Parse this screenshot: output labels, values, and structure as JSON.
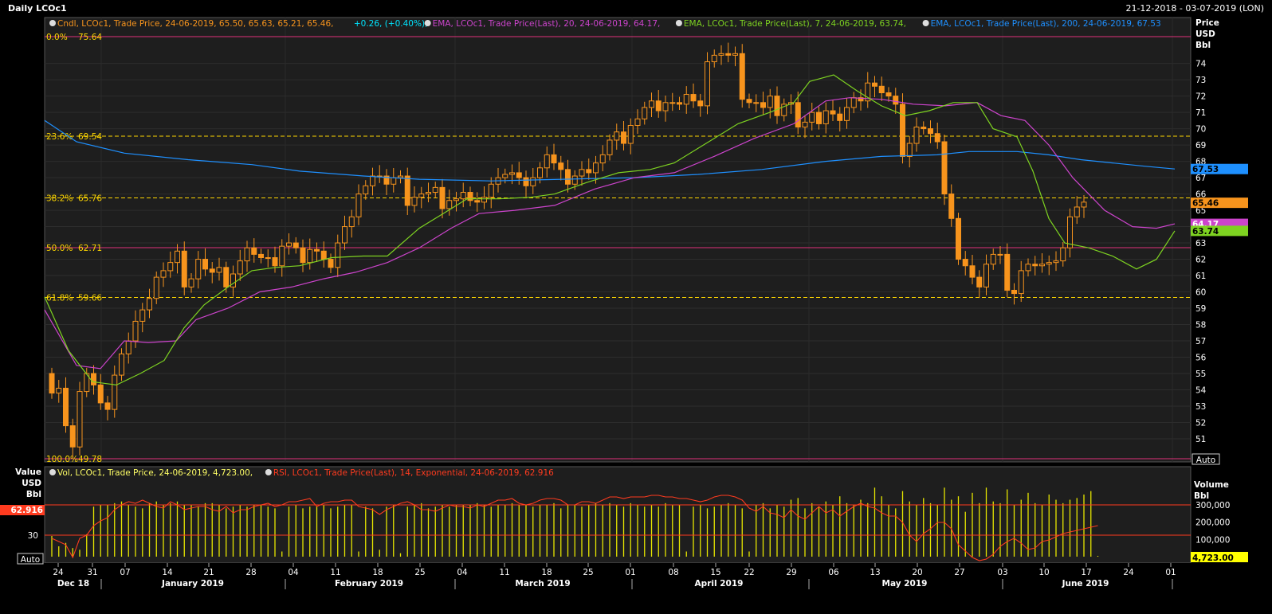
{
  "header": {
    "title": "Daily LCOc1",
    "date_range": "21-12-2018 - 03-07-2019 (LON)"
  },
  "legend_main": [
    {
      "text": "Cndl, LCOc1, Trade Price,  24-06-2019, 65.50, 65.63, 65.21, 65.46, ",
      "color": "#f7941d"
    },
    {
      "text": "+0.26, (+0.40%),",
      "color": "#00e5ff"
    },
    {
      "text": "EMA, LCOc1, Trade Price(Last),  20,  24-06-2019, 64.17,",
      "color": "#cc44cc"
    },
    {
      "text": "EMA, LCOc1, Trade Price(Last),  7,  24-06-2019, 63.74,",
      "color": "#7ed321"
    },
    {
      "text": "EMA, LCOc1, Trade Price(Last),  200,  24-06-2019, 67.53",
      "color": "#1e90ff"
    }
  ],
  "legend_lower": [
    {
      "text": "Vol, LCOc1, Trade Price,  24-06-2019, 4,723.00,",
      "color": "#ffff66"
    },
    {
      "text": "RSI, LCOc1, Trade Price(Last),  14, Exponential,  24-06-2019, 62.916",
      "color": "#ff3b1f"
    }
  ],
  "main_axis": {
    "unit_lines": [
      "Price",
      "USD",
      "Bbl"
    ],
    "ticks": [
      51,
      52,
      53,
      54,
      55,
      56,
      57,
      58,
      59,
      60,
      61,
      62,
      63,
      64,
      65,
      66,
      67,
      68,
      69,
      70,
      71,
      72,
      73,
      74
    ],
    "auto_label": "Auto"
  },
  "fib_levels": [
    {
      "pct": "0.0%",
      "price": "75.64",
      "value": 75.64,
      "style": "solid"
    },
    {
      "pct": "23.6%",
      "price": "69.54",
      "value": 69.54,
      "style": "dashed"
    },
    {
      "pct": "38.2%",
      "price": "65.76",
      "value": 65.76,
      "style": "dashed"
    },
    {
      "pct": "50.0%",
      "price": "62.71",
      "value": 62.71,
      "style": "solid"
    },
    {
      "pct": "61.8%",
      "price": "59.66",
      "value": 59.66,
      "style": "dashed"
    },
    {
      "pct": "100.0%",
      "price": "49.78",
      "value": 49.78,
      "style": "solid"
    }
  ],
  "price_tags": [
    {
      "text": "67.53",
      "value": 67.53,
      "color": "#1e90ff",
      "text_color": "#000"
    },
    {
      "text": "65.46",
      "value": 65.46,
      "color": "#f7941d",
      "text_color": "#000"
    },
    {
      "text": "64.17",
      "value": 64.17,
      "color": "#cc44cc",
      "text_color": "#fff"
    },
    {
      "text": "63.74",
      "value": 63.74,
      "color": "#7ed321",
      "text_color": "#000"
    }
  ],
  "lower_left_axis": {
    "unit_lines": [
      "Value",
      "USD",
      "Bbl"
    ],
    "rsi_tag": "62.916",
    "tick_30": "30",
    "auto_label": "Auto"
  },
  "lower_right_axis": {
    "unit_lines": [
      "Volume",
      "Bbl"
    ],
    "ticks": [
      {
        "text": "300,000",
        "value": 300000
      },
      {
        "text": "200,000",
        "value": 200000
      },
      {
        "text": "100,000",
        "value": 100000
      }
    ],
    "vol_tag": "4,723.00"
  },
  "x_axis": {
    "day_labels": [
      "24",
      "31",
      "07",
      "14",
      "21",
      "28",
      "04",
      "11",
      "18",
      "25",
      "04",
      "11",
      "18",
      "25",
      "01",
      "08",
      "15",
      "22",
      "29",
      "06",
      "13",
      "20",
      "27",
      "03",
      "10",
      "17",
      "24",
      "01"
    ],
    "month_labels": [
      "Dec 18",
      "January 2019",
      "February 2019",
      "March 2019",
      "April 2019",
      "May 2019",
      "June 2019"
    ]
  },
  "colors": {
    "candle": "#f7941d",
    "ema20": "#cc44cc",
    "ema7": "#7ed321",
    "ema200": "#1e90ff",
    "fib_solid": "#e0307a",
    "fib_dashed": "#ffd700",
    "volume": "#e6e600",
    "rsi": "#ff3b1f"
  },
  "chart_data": {
    "type": "candlestick",
    "title": "Daily LCOc1",
    "ylabel": "Price USD Bbl",
    "ylim": [
      49.78,
      75.64
    ],
    "x_range": [
      "21-12-2018",
      "03-07-2019"
    ],
    "last": {
      "date": "24-06-2019",
      "open": 65.5,
      "high": 65.63,
      "low": 65.21,
      "close": 65.46,
      "change": 0.26,
      "change_pct": 0.4
    },
    "closes": [
      53.8,
      54.1,
      51.8,
      50.5,
      53.9,
      55.0,
      54.3,
      53.2,
      52.8,
      54.9,
      56.2,
      57.0,
      58.2,
      58.9,
      59.6,
      60.9,
      61.3,
      61.8,
      62.5,
      60.3,
      60.8,
      62.0,
      61.4,
      61.2,
      61.5,
      60.3,
      61.1,
      61.9,
      62.7,
      62.3,
      62.1,
      62.1,
      61.6,
      62.8,
      63.0,
      62.7,
      61.8,
      62.6,
      62.5,
      62.0,
      61.5,
      63.0,
      64.0,
      64.6,
      66.0,
      66.5,
      67.1,
      67.1,
      66.6,
      67.0,
      67.1,
      65.3,
      65.8,
      66.0,
      66.1,
      66.4,
      65.1,
      65.6,
      65.7,
      66.1,
      65.6,
      65.5,
      65.8,
      66.6,
      67.0,
      67.2,
      67.3,
      67.0,
      66.5,
      67.0,
      67.6,
      68.4,
      67.9,
      67.5,
      66.6,
      67.1,
      67.5,
      67.3,
      67.9,
      68.4,
      69.3,
      69.8,
      69.1,
      70.2,
      70.6,
      71.3,
      71.7,
      71.1,
      71.6,
      71.6,
      71.5,
      72.1,
      71.7,
      71.4,
      74.1,
      74.5,
      74.6,
      74.5,
      74.6,
      71.8,
      71.6,
      71.6,
      71.3,
      72.0,
      70.8,
      71.5,
      71.6,
      70.1,
      70.4,
      71.0,
      70.3,
      71.1,
      70.9,
      70.5,
      71.3,
      71.9,
      71.7,
      72.8,
      72.6,
      72.2,
      72.0,
      71.5,
      68.3,
      69.1,
      70.1,
      70.0,
      69.7,
      69.2,
      66.0,
      64.5,
      62.0,
      61.6,
      60.9,
      60.3,
      61.7,
      62.3,
      62.3,
      60.1,
      59.9,
      61.3,
      61.7,
      61.6,
      61.7,
      61.8,
      61.9,
      62.7,
      64.6,
      65.2,
      65.5
    ],
    "ema200_points": [
      [
        0,
        70.5
      ],
      [
        40,
        69.2
      ],
      [
        100,
        68.5
      ],
      [
        180,
        68.1
      ],
      [
        260,
        67.8
      ],
      [
        320,
        67.4
      ],
      [
        400,
        67.1
      ],
      [
        470,
        66.9
      ],
      [
        560,
        66.8
      ],
      [
        650,
        66.9
      ],
      [
        740,
        67.0
      ],
      [
        820,
        67.2
      ],
      [
        900,
        67.5
      ],
      [
        980,
        68.0
      ],
      [
        1050,
        68.3
      ],
      [
        1120,
        68.4
      ],
      [
        1160,
        68.6
      ],
      [
        1220,
        68.6
      ],
      [
        1260,
        68.4
      ],
      [
        1300,
        68.1
      ],
      [
        1340,
        67.9
      ],
      [
        1380,
        67.7
      ],
      [
        1418,
        67.53
      ]
    ],
    "ema20_points": [
      [
        0,
        58.9
      ],
      [
        40,
        55.5
      ],
      [
        70,
        55.3
      ],
      [
        100,
        57.0
      ],
      [
        130,
        56.9
      ],
      [
        165,
        57.0
      ],
      [
        190,
        58.3
      ],
      [
        230,
        59.0
      ],
      [
        270,
        60.0
      ],
      [
        310,
        60.3
      ],
      [
        350,
        60.8
      ],
      [
        390,
        61.2
      ],
      [
        430,
        61.8
      ],
      [
        470,
        62.7
      ],
      [
        510,
        63.9
      ],
      [
        545,
        64.8
      ],
      [
        590,
        65.0
      ],
      [
        640,
        65.3
      ],
      [
        690,
        66.3
      ],
      [
        740,
        67.0
      ],
      [
        790,
        67.3
      ],
      [
        840,
        68.3
      ],
      [
        890,
        69.4
      ],
      [
        940,
        70.3
      ],
      [
        980,
        71.7
      ],
      [
        1010,
        71.9
      ],
      [
        1050,
        71.8
      ],
      [
        1090,
        71.5
      ],
      [
        1130,
        71.4
      ],
      [
        1170,
        71.6
      ],
      [
        1200,
        70.8
      ],
      [
        1230,
        70.5
      ],
      [
        1260,
        69.0
      ],
      [
        1290,
        67.0
      ],
      [
        1330,
        65.0
      ],
      [
        1365,
        64.0
      ],
      [
        1395,
        63.9
      ],
      [
        1418,
        64.17
      ]
    ],
    "ema7_points": [
      [
        0,
        59.7
      ],
      [
        30,
        56.4
      ],
      [
        60,
        54.5
      ],
      [
        90,
        54.3
      ],
      [
        120,
        55.0
      ],
      [
        150,
        55.8
      ],
      [
        175,
        57.8
      ],
      [
        200,
        59.2
      ],
      [
        230,
        60.3
      ],
      [
        260,
        61.3
      ],
      [
        290,
        61.5
      ],
      [
        320,
        61.6
      ],
      [
        360,
        62.1
      ],
      [
        400,
        62.2
      ],
      [
        430,
        62.2
      ],
      [
        470,
        63.9
      ],
      [
        500,
        64.8
      ],
      [
        530,
        65.7
      ],
      [
        570,
        65.7
      ],
      [
        610,
        65.8
      ],
      [
        640,
        66.0
      ],
      [
        680,
        66.7
      ],
      [
        720,
        67.3
      ],
      [
        760,
        67.5
      ],
      [
        790,
        67.9
      ],
      [
        830,
        69.1
      ],
      [
        870,
        70.3
      ],
      [
        910,
        71.0
      ],
      [
        940,
        71.6
      ],
      [
        960,
        72.9
      ],
      [
        990,
        73.3
      ],
      [
        1020,
        72.3
      ],
      [
        1050,
        71.4
      ],
      [
        1080,
        70.8
      ],
      [
        1110,
        71.1
      ],
      [
        1140,
        71.6
      ],
      [
        1170,
        71.6
      ],
      [
        1190,
        70.0
      ],
      [
        1220,
        69.5
      ],
      [
        1240,
        67.4
      ],
      [
        1260,
        64.5
      ],
      [
        1280,
        63.0
      ],
      [
        1310,
        62.7
      ],
      [
        1340,
        62.2
      ],
      [
        1370,
        61.4
      ],
      [
        1395,
        62.0
      ],
      [
        1418,
        63.74
      ]
    ],
    "volume": [
      120000,
      60000,
      80000,
      50000,
      40000,
      130000,
      290000,
      300000,
      300000,
      310000,
      320000,
      300000,
      290000,
      280000,
      310000,
      320000,
      300000,
      310000,
      320000,
      300000,
      300000,
      290000,
      310000,
      310000,
      300000,
      280000,
      290000,
      300000,
      290000,
      300000,
      300000,
      290000,
      280000,
      30000,
      290000,
      300000,
      280000,
      290000,
      290000,
      300000,
      280000,
      290000,
      300000,
      300000,
      30000,
      290000,
      280000,
      40000,
      290000,
      300000,
      20000,
      290000,
      300000,
      310000,
      280000,
      290000,
      300000,
      290000,
      300000,
      300000,
      300000,
      310000,
      300000,
      290000,
      300000,
      300000,
      310000,
      300000,
      300000,
      290000,
      300000,
      300000,
      310000,
      280000,
      300000,
      300000,
      290000,
      300000,
      310000,
      300000,
      310000,
      300000,
      290000,
      310000,
      300000,
      290000,
      300000,
      290000,
      310000,
      300000,
      300000,
      30000,
      290000,
      300000,
      280000,
      290000,
      300000,
      310000,
      300000,
      280000,
      30000,
      300000,
      310000,
      280000,
      300000,
      290000,
      330000,
      340000,
      280000,
      310000,
      290000,
      320000,
      300000,
      350000,
      310000,
      300000,
      330000,
      310000,
      400000,
      350000,
      300000,
      280000,
      380000,
      320000,
      300000,
      340000,
      310000,
      300000,
      400000,
      330000,
      350000,
      260000,
      370000,
      310000,
      400000,
      320000,
      310000,
      390000,
      300000,
      330000,
      370000,
      310000,
      300000,
      360000,
      330000,
      310000,
      330000,
      340000,
      360000,
      380000,
      4723
    ],
    "rsi_y": [
      72,
      70,
      68,
      60,
      72,
      74,
      80,
      83,
      85,
      90,
      93,
      95,
      94,
      96,
      94,
      92,
      91,
      95,
      93,
      90,
      91,
      92,
      92,
      90,
      89,
      92,
      88,
      90,
      90,
      92,
      93,
      94,
      92,
      93,
      95,
      95,
      96,
      97,
      92,
      94,
      95,
      95,
      96,
      96,
      92,
      91,
      90,
      87,
      90,
      92,
      94,
      95,
      93,
      90,
      90,
      89,
      91,
      93,
      92,
      92,
      91,
      93,
      92,
      94,
      96,
      96,
      97,
      94,
      93,
      94,
      96,
      97,
      97,
      96,
      93,
      93,
      95,
      95,
      94,
      96,
      98,
      98,
      97,
      98,
      98,
      98,
      99,
      99,
      98,
      98,
      97,
      97,
      96,
      95,
      96,
      98,
      99,
      99,
      98,
      96,
      91,
      89,
      92,
      88,
      87,
      85,
      90,
      86,
      84,
      88,
      92,
      88,
      90,
      86,
      89,
      92,
      94,
      92,
      91,
      88,
      86,
      86,
      82,
      74,
      70,
      75,
      78,
      82,
      82,
      78,
      68,
      64,
      60,
      58,
      59,
      62,
      67,
      70,
      72,
      69,
      65,
      66,
      70,
      71,
      73,
      75,
      76,
      77,
      78,
      79,
      80
    ]
  }
}
